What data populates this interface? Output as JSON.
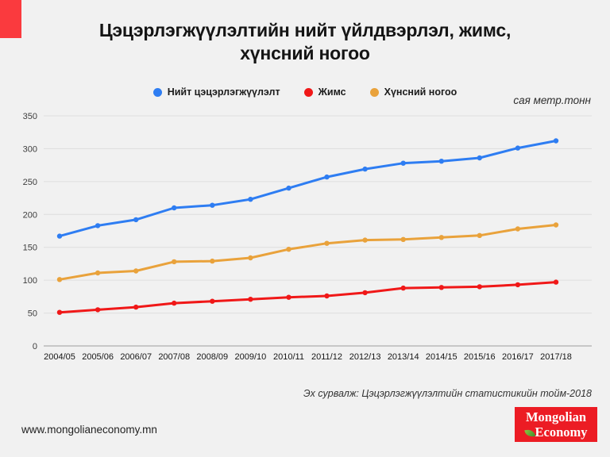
{
  "page": {
    "title": "Цэцэрлэгжүүлэлтийн нийт үйлдвэрлэл, жимс,\nхүнсний ногоо",
    "unit_label": "сая метр.тонн",
    "source": "Эх сурвалж: Цэцэрлэгжүүлэлтийн статистикийн тойм-2018",
    "footer_url": "www.mongolianeconomy.mn",
    "logo": {
      "line1": "Mongolian",
      "line2": "Economy",
      "leaf_icon": "green-leaf"
    }
  },
  "colors": {
    "background": "#f1f1f1",
    "accent_red": "#fa3a3e",
    "logo_red": "#ec1c24",
    "grid": "#dedede",
    "axis_line": "#c7c7c7",
    "series_blue": "#2e7df2",
    "series_red": "#f01818",
    "series_orange": "#e9a23b"
  },
  "chart_data": {
    "type": "line",
    "title": "Цэцэрлэгжүүлэлтийн нийт үйлдвэрлэл, жимс, хүнсний ногоо",
    "ylabel": "сая метр.тонн",
    "xlabel": "",
    "grid": true,
    "legend_position": "top",
    "ylim": [
      0,
      350
    ],
    "y_ticks": [
      0,
      50,
      100,
      150,
      200,
      250,
      300,
      350
    ],
    "categories": [
      "2004/05",
      "2005/06",
      "2006/07",
      "2007/08",
      "2008/09",
      "2009/10",
      "2010/11",
      "2011/12",
      "2012/13",
      "2013/14",
      "2014/15",
      "2015/16",
      "2016/17",
      "2017/18"
    ],
    "series": [
      {
        "name": "Нийт цэцэрлэгжүүлэлт",
        "color": "#2e7df2",
        "values": [
          167,
          183,
          192,
          210,
          214,
          223,
          240,
          257,
          269,
          278,
          281,
          286,
          301,
          312
        ]
      },
      {
        "name": "Жимс",
        "color": "#f01818",
        "values": [
          51,
          55,
          59,
          65,
          68,
          71,
          74,
          76,
          81,
          88,
          89,
          90,
          93,
          97
        ]
      },
      {
        "name": "Хүнсний ногоо",
        "color": "#e9a23b",
        "values": [
          101,
          111,
          114,
          128,
          129,
          134,
          147,
          156,
          161,
          162,
          165,
          168,
          178,
          184
        ]
      }
    ]
  }
}
